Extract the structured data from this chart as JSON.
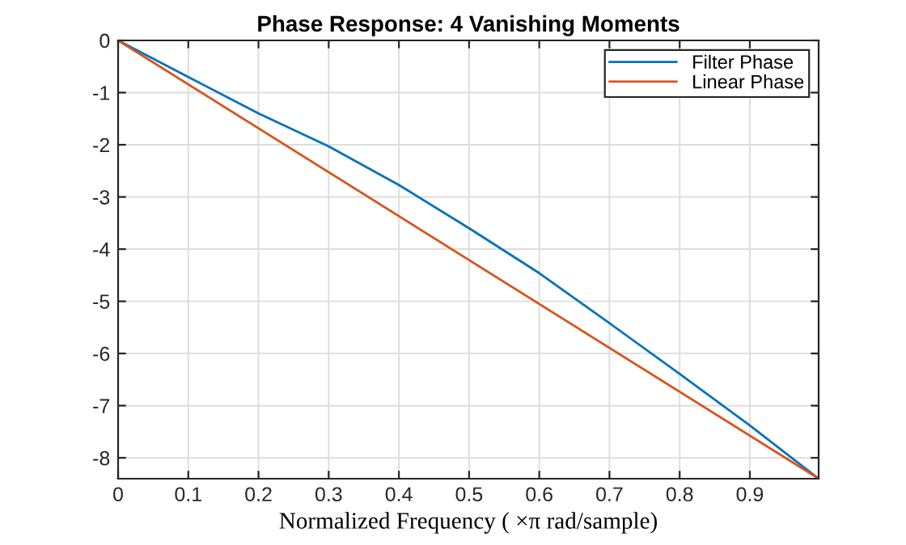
{
  "chart_data": {
    "type": "line",
    "title": "Phase Response: 4 Vanishing Moments",
    "xlabel": "Normalized Frequency ( ×π rad/sample)",
    "series": [
      {
        "name": "Filter Phase",
        "color": "#0072bd",
        "x": [
          0,
          0.1,
          0.2,
          0.3,
          0.4,
          0.5,
          0.6,
          0.7,
          0.8,
          0.9,
          0.998
        ],
        "values": [
          0,
          -0.7,
          -1.4,
          -2.03,
          -2.77,
          -3.6,
          -4.46,
          -5.42,
          -6.39,
          -7.38,
          -8.4
        ]
      },
      {
        "name": "Linear Phase",
        "color": "#d95319",
        "x": [
          0,
          0.998
        ],
        "values": [
          0,
          -8.4
        ]
      }
    ],
    "xlim": [
      0,
      0.998
    ],
    "ylim": [
      -8.4,
      0
    ],
    "xticks": [
      0,
      0.1,
      0.2,
      0.3,
      0.4,
      0.5,
      0.6,
      0.7,
      0.8,
      0.9
    ],
    "yticks": [
      -8,
      -7,
      -6,
      -5,
      -4,
      -3,
      -2,
      -1,
      0
    ],
    "grid": true,
    "legend": "top right",
    "marker": "none",
    "line_style": "solid"
  }
}
